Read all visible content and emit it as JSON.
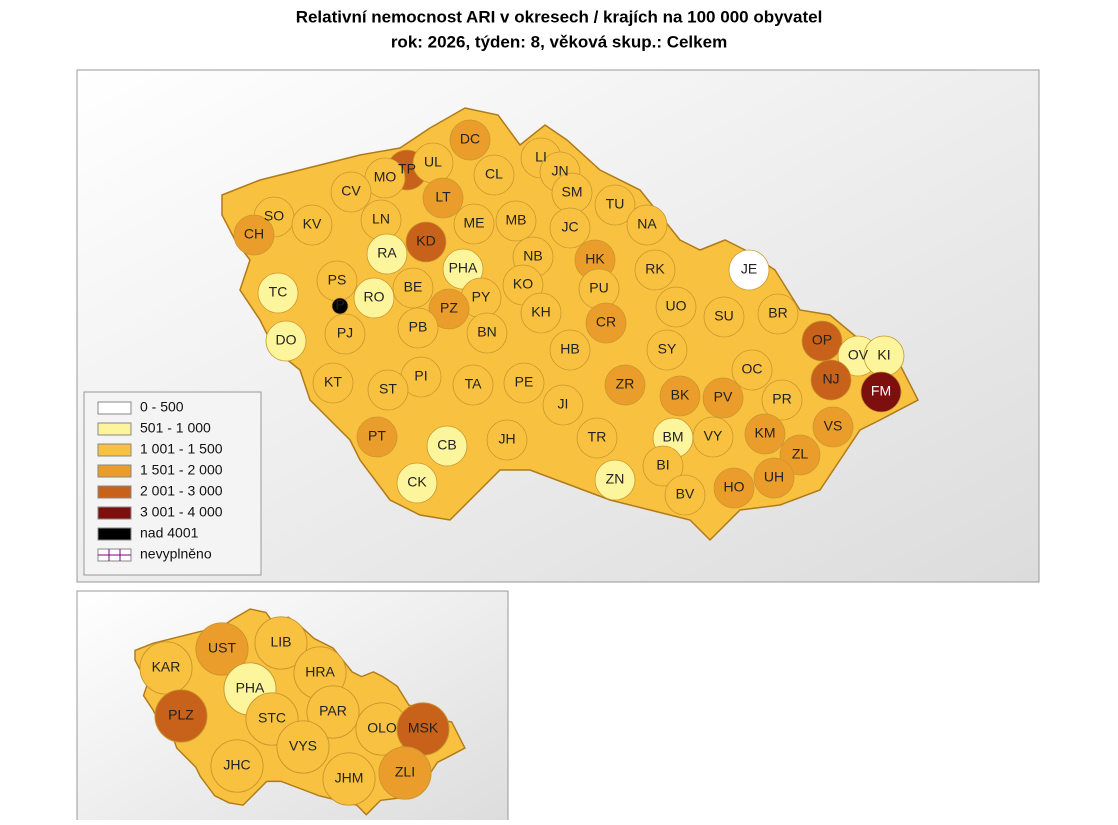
{
  "title": "Relativní nemocnost ARI v okresech / krajích na 100 000 obyvatel",
  "subtitle": "rok: 2026, týden: 8, věková skup.: Celkem",
  "legend": {
    "items": [
      {
        "label": "0 - 500",
        "color": "#ffffff"
      },
      {
        "label": "501 - 1 000",
        "color": "#fdf59c"
      },
      {
        "label": "1 001 - 1 500",
        "color": "#f8c240"
      },
      {
        "label": "1 501 - 2 000",
        "color": "#eb9d2c"
      },
      {
        "label": "2 001 - 3 000",
        "color": "#c8611a"
      },
      {
        "label": "3 001 - 4 000",
        "color": "#7d0f0f"
      },
      {
        "label": "nad 4001",
        "color": "#000000"
      },
      {
        "label": "nevyplněno",
        "color": "#ffffff"
      }
    ]
  },
  "districts": [
    {
      "label": "DC",
      "color": "#eb9d2c"
    },
    {
      "label": "TP",
      "color": "#c8611a"
    },
    {
      "label": "UL",
      "color": "#f8c240"
    },
    {
      "label": "MO",
      "color": "#f8c240"
    },
    {
      "label": "CL",
      "color": "#f8c240"
    },
    {
      "label": "LI",
      "color": "#f8c240"
    },
    {
      "label": "JN",
      "color": "#f8c240"
    },
    {
      "label": "SM",
      "color": "#f8c240"
    },
    {
      "label": "CV",
      "color": "#f8c240"
    },
    {
      "label": "LT",
      "color": "#eb9d2c"
    },
    {
      "label": "SO",
      "color": "#f8c240"
    },
    {
      "label": "CH",
      "color": "#eb9d2c"
    },
    {
      "label": "KV",
      "color": "#f8c240"
    },
    {
      "label": "LN",
      "color": "#f8c240"
    },
    {
      "label": "ME",
      "color": "#f8c240"
    },
    {
      "label": "MB",
      "color": "#f8c240"
    },
    {
      "label": "JC",
      "color": "#f8c240"
    },
    {
      "label": "TU",
      "color": "#f8c240"
    },
    {
      "label": "NA",
      "color": "#f8c240"
    },
    {
      "label": "KD",
      "color": "#c8611a"
    },
    {
      "label": "RA",
      "color": "#fdf59c"
    },
    {
      "label": "NB",
      "color": "#f8c240"
    },
    {
      "label": "HK",
      "color": "#eb9d2c"
    },
    {
      "label": "RK",
      "color": "#f8c240"
    },
    {
      "label": "JE",
      "color": "#ffffff"
    },
    {
      "label": "PHA",
      "color": "#fdf59c"
    },
    {
      "label": "PS",
      "color": "#f8c240"
    },
    {
      "label": "TC",
      "color": "#fdf59c"
    },
    {
      "label": "RO",
      "color": "#fdf59c"
    },
    {
      "label": "BE",
      "color": "#f8c240"
    },
    {
      "label": "PY",
      "color": "#f8c240"
    },
    {
      "label": "KO",
      "color": "#f8c240"
    },
    {
      "label": "PU",
      "color": "#f8c240"
    },
    {
      "label": "P",
      "color": "#000000"
    },
    {
      "label": "PZ",
      "color": "#eb9d2c"
    },
    {
      "label": "KH",
      "color": "#f8c240"
    },
    {
      "label": "UO",
      "color": "#f8c240"
    },
    {
      "label": "SU",
      "color": "#f8c240"
    },
    {
      "label": "BR",
      "color": "#f8c240"
    },
    {
      "label": "PJ",
      "color": "#f8c240"
    },
    {
      "label": "PB",
      "color": "#f8c240"
    },
    {
      "label": "BN",
      "color": "#f8c240"
    },
    {
      "label": "CR",
      "color": "#eb9d2c"
    },
    {
      "label": "OP",
      "color": "#c8611a"
    },
    {
      "label": "DO",
      "color": "#fdf59c"
    },
    {
      "label": "HB",
      "color": "#f8c240"
    },
    {
      "label": "SY",
      "color": "#f8c240"
    },
    {
      "label": "OV",
      "color": "#fdf59c"
    },
    {
      "label": "KI",
      "color": "#fdf59c"
    },
    {
      "label": "OC",
      "color": "#f8c240"
    },
    {
      "label": "KT",
      "color": "#f8c240"
    },
    {
      "label": "PI",
      "color": "#f8c240"
    },
    {
      "label": "ST",
      "color": "#f8c240"
    },
    {
      "label": "TA",
      "color": "#f8c240"
    },
    {
      "label": "PE",
      "color": "#f8c240"
    },
    {
      "label": "ZR",
      "color": "#eb9d2c"
    },
    {
      "label": "NJ",
      "color": "#c8611a"
    },
    {
      "label": "FM",
      "color": "#7d0f0f"
    },
    {
      "label": "BK",
      "color": "#eb9d2c"
    },
    {
      "label": "PV",
      "color": "#eb9d2c"
    },
    {
      "label": "PR",
      "color": "#f8c240"
    },
    {
      "label": "JI",
      "color": "#f8c240"
    },
    {
      "label": "VS",
      "color": "#eb9d2c"
    },
    {
      "label": "KM",
      "color": "#eb9d2c"
    },
    {
      "label": "PT",
      "color": "#eb9d2c"
    },
    {
      "label": "CB",
      "color": "#fdf59c"
    },
    {
      "label": "TR",
      "color": "#f8c240"
    },
    {
      "label": "BM",
      "color": "#fdf59c"
    },
    {
      "label": "VY",
      "color": "#f8c240"
    },
    {
      "label": "JH",
      "color": "#f8c240"
    },
    {
      "label": "ZL",
      "color": "#eb9d2c"
    },
    {
      "label": "BI",
      "color": "#f8c240"
    },
    {
      "label": "UH",
      "color": "#eb9d2c"
    },
    {
      "label": "ZN",
      "color": "#fdf59c"
    },
    {
      "label": "CK",
      "color": "#fdf59c"
    },
    {
      "label": "HO",
      "color": "#eb9d2c"
    },
    {
      "label": "BV",
      "color": "#f8c240"
    }
  ],
  "regions": [
    {
      "label": "KAR",
      "color": "#f8c240"
    },
    {
      "label": "UST",
      "color": "#eb9d2c"
    },
    {
      "label": "LIB",
      "color": "#f8c240"
    },
    {
      "label": "HRA",
      "color": "#f8c240"
    },
    {
      "label": "PHA",
      "color": "#fdf59c"
    },
    {
      "label": "PLZ",
      "color": "#c8611a"
    },
    {
      "label": "STC",
      "color": "#f8c240"
    },
    {
      "label": "PAR",
      "color": "#f8c240"
    },
    {
      "label": "OLO",
      "color": "#f8c240"
    },
    {
      "label": "MSK",
      "color": "#c8611a"
    },
    {
      "label": "VYS",
      "color": "#f8c240"
    },
    {
      "label": "JHC",
      "color": "#f8c240"
    },
    {
      "label": "JHM",
      "color": "#f8c240"
    },
    {
      "label": "ZLI",
      "color": "#eb9d2c"
    }
  ]
}
